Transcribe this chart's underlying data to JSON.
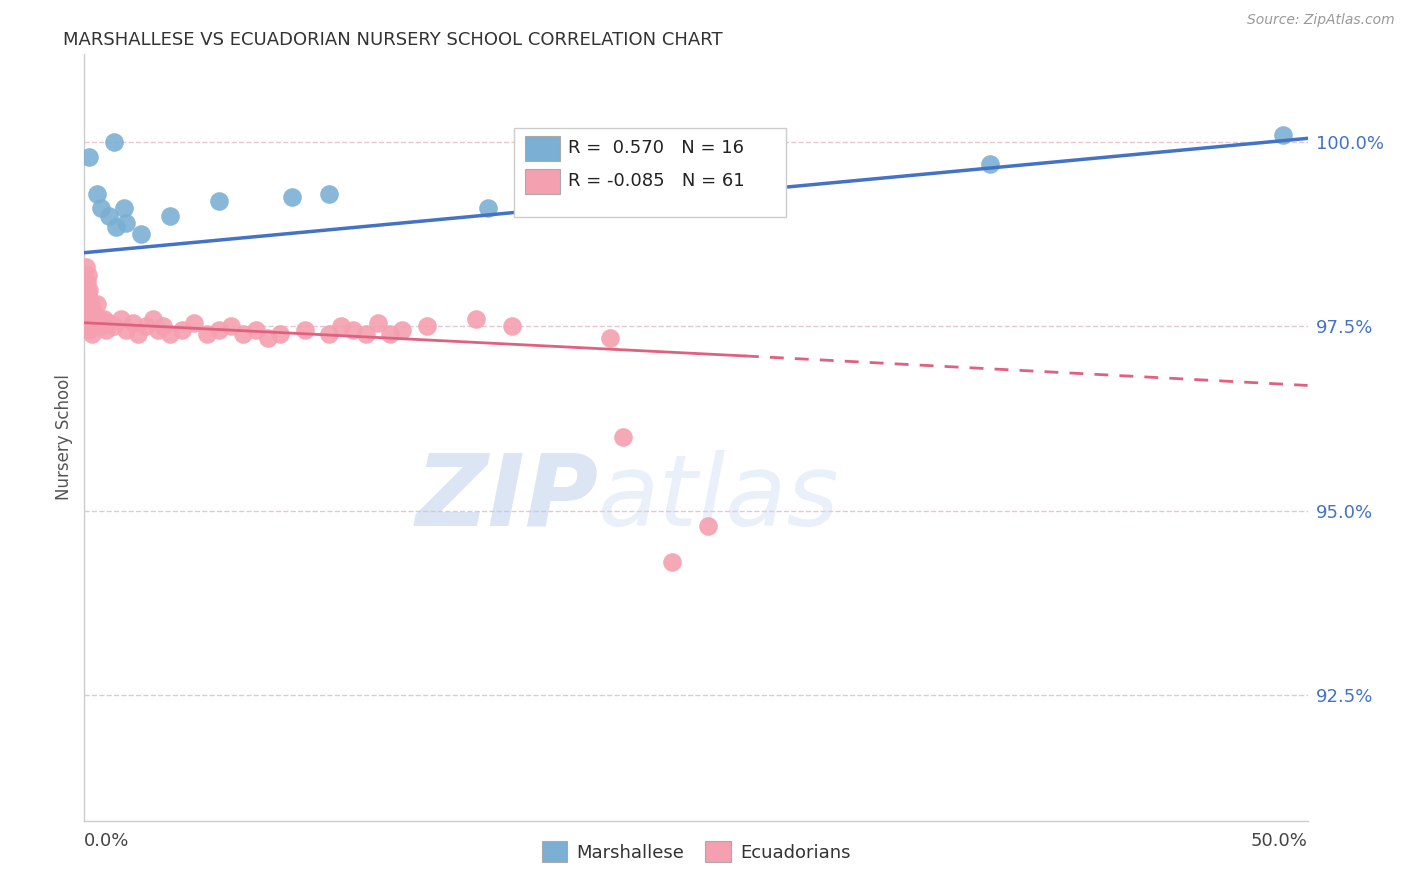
{
  "title": "MARSHALLESE VS ECUADORIAN NURSERY SCHOOL CORRELATION CHART",
  "source": "Source: ZipAtlas.com",
  "ylabel": "Nursery School",
  "xlim": [
    0.0,
    50.0
  ],
  "ylim": [
    90.8,
    101.2
  ],
  "r_marshallese": 0.57,
  "n_marshallese": 16,
  "r_ecuadorian": -0.085,
  "n_ecuadorian": 61,
  "marshallese_color": "#7bafd4",
  "ecuadorian_color": "#f4a0b0",
  "marshallese_scatter": [
    [
      0.2,
      99.8
    ],
    [
      1.2,
      100.0
    ],
    [
      0.5,
      99.3
    ],
    [
      0.7,
      99.1
    ],
    [
      1.0,
      99.0
    ],
    [
      1.3,
      98.85
    ],
    [
      1.7,
      98.9
    ],
    [
      1.6,
      99.1
    ],
    [
      2.3,
      98.75
    ],
    [
      3.5,
      99.0
    ],
    [
      5.5,
      99.2
    ],
    [
      8.5,
      99.25
    ],
    [
      10.0,
      99.3
    ],
    [
      16.5,
      99.1
    ],
    [
      37.0,
      99.7
    ],
    [
      49.0,
      100.1
    ]
  ],
  "ecuadorian_scatter": [
    [
      0.05,
      98.3
    ],
    [
      0.05,
      97.9
    ],
    [
      0.1,
      98.1
    ],
    [
      0.1,
      97.7
    ],
    [
      0.15,
      98.2
    ],
    [
      0.15,
      97.95
    ],
    [
      0.15,
      97.7
    ],
    [
      0.15,
      97.55
    ],
    [
      0.2,
      98.0
    ],
    [
      0.2,
      97.8
    ],
    [
      0.2,
      97.6
    ],
    [
      0.2,
      97.45
    ],
    [
      0.25,
      97.85
    ],
    [
      0.25,
      97.65
    ],
    [
      0.3,
      97.75
    ],
    [
      0.3,
      97.55
    ],
    [
      0.3,
      97.4
    ],
    [
      0.35,
      97.7
    ],
    [
      0.35,
      97.5
    ],
    [
      0.4,
      97.65
    ],
    [
      0.5,
      97.8
    ],
    [
      0.5,
      97.55
    ],
    [
      0.6,
      97.6
    ],
    [
      0.7,
      97.5
    ],
    [
      0.8,
      97.6
    ],
    [
      0.9,
      97.45
    ],
    [
      1.0,
      97.55
    ],
    [
      1.2,
      97.5
    ],
    [
      1.5,
      97.6
    ],
    [
      1.7,
      97.45
    ],
    [
      2.0,
      97.55
    ],
    [
      2.2,
      97.4
    ],
    [
      2.5,
      97.5
    ],
    [
      2.8,
      97.6
    ],
    [
      3.0,
      97.45
    ],
    [
      3.2,
      97.5
    ],
    [
      3.5,
      97.4
    ],
    [
      4.0,
      97.45
    ],
    [
      4.5,
      97.55
    ],
    [
      5.0,
      97.4
    ],
    [
      5.5,
      97.45
    ],
    [
      6.0,
      97.5
    ],
    [
      6.5,
      97.4
    ],
    [
      7.0,
      97.45
    ],
    [
      7.5,
      97.35
    ],
    [
      8.0,
      97.4
    ],
    [
      9.0,
      97.45
    ],
    [
      10.0,
      97.4
    ],
    [
      10.5,
      97.5
    ],
    [
      11.0,
      97.45
    ],
    [
      11.5,
      97.4
    ],
    [
      12.0,
      97.55
    ],
    [
      12.5,
      97.4
    ],
    [
      13.0,
      97.45
    ],
    [
      14.0,
      97.5
    ],
    [
      16.0,
      97.6
    ],
    [
      17.5,
      97.5
    ],
    [
      21.5,
      97.35
    ],
    [
      25.5,
      94.8
    ],
    [
      22.0,
      96.0
    ],
    [
      24.0,
      94.3
    ]
  ],
  "blue_line": [
    [
      0.0,
      98.5
    ],
    [
      50.0,
      100.05
    ]
  ],
  "pink_line_solid": [
    [
      0.0,
      97.55
    ],
    [
      27.0,
      97.1
    ]
  ],
  "pink_line_dashed": [
    [
      27.0,
      97.1
    ],
    [
      50.0,
      96.7
    ]
  ],
  "watermark_zip": "ZIP",
  "watermark_atlas": "atlas",
  "background_color": "#ffffff",
  "grid_color": "#e0b8c8",
  "title_color": "#333333",
  "label_color": "#555555",
  "right_tick_color": "#4472c4",
  "blue_line_color": "#4472c4",
  "pink_line_color": "#e06080",
  "ytick_vals": [
    92.5,
    95.0,
    97.5,
    100.0
  ]
}
